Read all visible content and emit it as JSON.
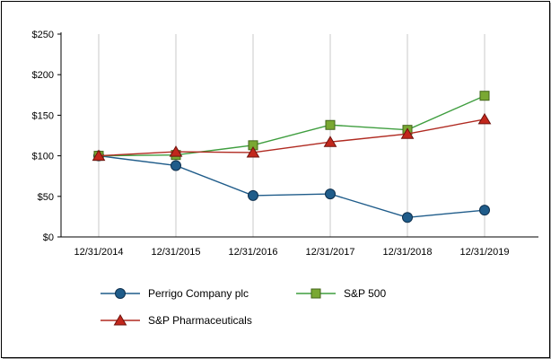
{
  "chart_data": {
    "type": "line",
    "title": "",
    "xlabel": "",
    "ylabel": "",
    "x": [
      "12/31/2014",
      "12/31/2015",
      "12/31/2016",
      "12/31/2017",
      "12/31/2018",
      "12/31/2019"
    ],
    "series": [
      {
        "name": "Perrigo Company plc",
        "marker": "circle",
        "color": "#1f5c8a",
        "fill": "#1f5c8a",
        "edge": "#0e2f4d",
        "values": [
          100,
          88,
          51,
          53,
          24,
          33
        ]
      },
      {
        "name": "S&P 500",
        "marker": "square",
        "color": "#3f9e3f",
        "fill": "#79a832",
        "edge": "#42641a",
        "values": [
          100,
          101,
          113,
          138,
          132,
          174
        ]
      },
      {
        "name": "S&P Pharmaceuticals",
        "marker": "triangle",
        "color": "#b02a21",
        "fill": "#c2271c",
        "edge": "#6e130e",
        "values": [
          100,
          105,
          104,
          117,
          127,
          145
        ]
      }
    ],
    "ylim": [
      0,
      250
    ],
    "yticks": [
      0,
      50,
      100,
      150,
      200,
      250
    ],
    "ytick_labels": [
      "$0",
      "$50",
      "$100",
      "$150",
      "$200",
      "$250"
    ],
    "grid": "vertical",
    "gridline_color": "#c9c9c9",
    "legend_position": "bottom"
  }
}
